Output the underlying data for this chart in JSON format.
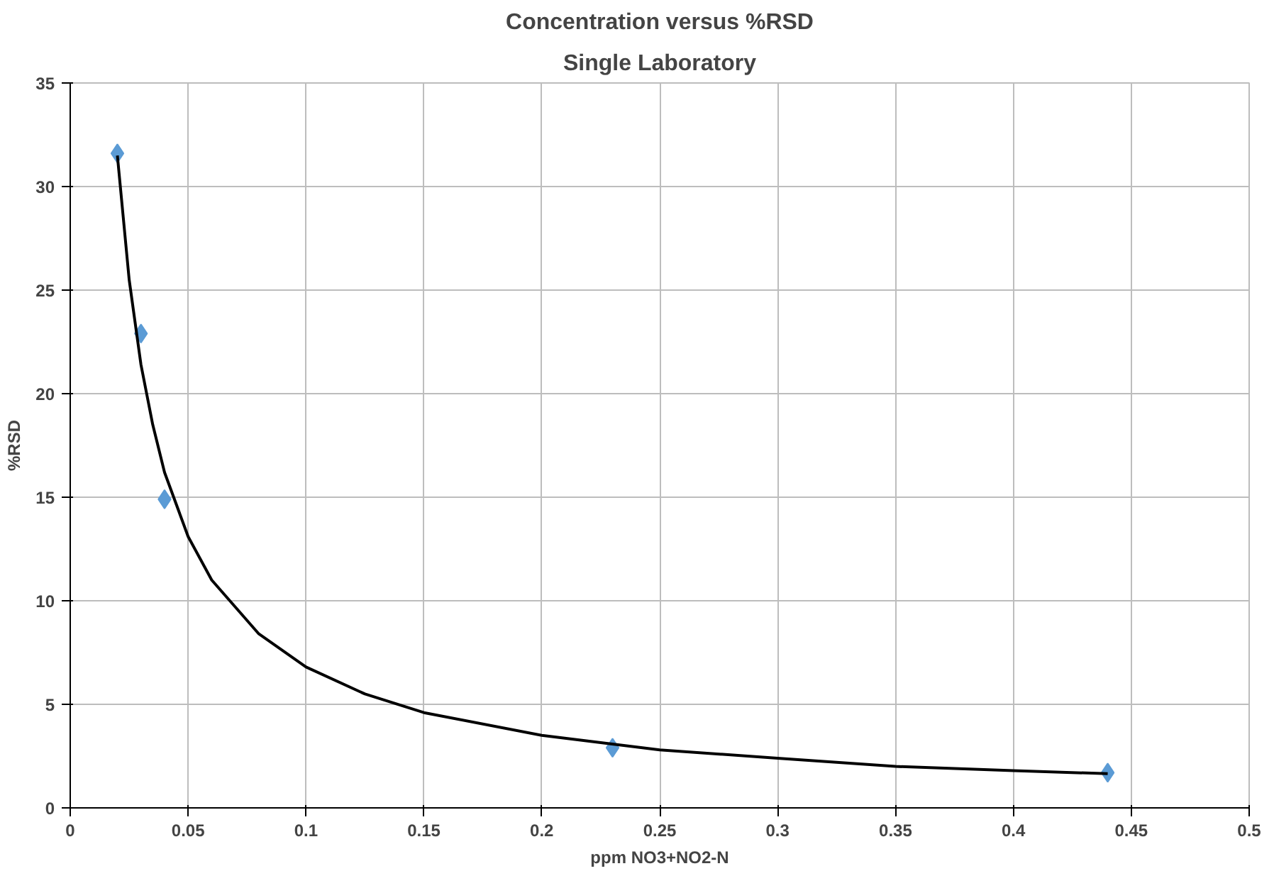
{
  "chart_data": {
    "type": "scatter",
    "title": "Concentration versus %RSD",
    "subtitle": "Single Laboratory",
    "xlabel": "ppm NO3+NO2-N",
    "ylabel": "%RSD",
    "series": [
      {
        "marker": "diamond",
        "color": "#5b9bd5",
        "x": [
          0.02,
          0.03,
          0.04,
          0.23,
          0.44
        ],
        "values": [
          31.6,
          22.9,
          14.9,
          2.9,
          1.7
        ]
      },
      {
        "type": "line",
        "marker": "none",
        "color": "#000000",
        "x": [
          0.02,
          0.025,
          0.03,
          0.035,
          0.04,
          0.05,
          0.06,
          0.08,
          0.1,
          0.125,
          0.15,
          0.2,
          0.25,
          0.3,
          0.35,
          0.4,
          0.44
        ],
        "values": [
          31.5,
          25.5,
          21.4,
          18.5,
          16.2,
          13.1,
          11.0,
          8.4,
          6.8,
          5.5,
          4.6,
          3.5,
          2.8,
          2.4,
          2.0,
          1.8,
          1.65
        ]
      }
    ],
    "xlim": [
      0,
      0.5
    ],
    "xticks": [
      0,
      0.05,
      0.1,
      0.15,
      0.2,
      0.25,
      0.3,
      0.35,
      0.4,
      0.45,
      0.5
    ],
    "ylim": [
      0,
      35
    ],
    "yticks": [
      0,
      5,
      10,
      15,
      20,
      25,
      30,
      35
    ],
    "grid": true
  }
}
